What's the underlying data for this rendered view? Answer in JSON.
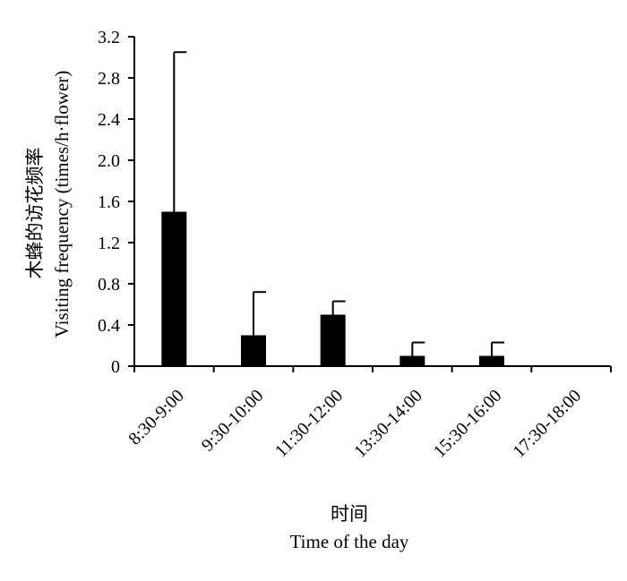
{
  "chart_data": {
    "type": "bar",
    "categories": [
      "8:30-9:00",
      "9:30-10:00",
      "11:30-12:00",
      "13:30-14:00",
      "15:30-16:00",
      "17:30-18:00"
    ],
    "values": [
      1.5,
      0.3,
      0.5,
      0.1,
      0.1,
      0
    ],
    "error_upper": [
      1.55,
      0.42,
      0.13,
      0.13,
      0.13,
      0
    ],
    "ylabel_cn": "木蜂的访花频率",
    "ylabel_en": "Visiting frequency (times/h·flower)",
    "xlabel_cn": "时间",
    "xlabel_en": "Time of the day",
    "ylim": [
      0,
      3.2
    ],
    "yticks": [
      "0",
      "0.4",
      "0.8",
      "1.2",
      "1.6",
      "2.0",
      "2.4",
      "2.8",
      "3.2"
    ],
    "bar_color": "#000000",
    "grid": false,
    "legend": "none"
  }
}
